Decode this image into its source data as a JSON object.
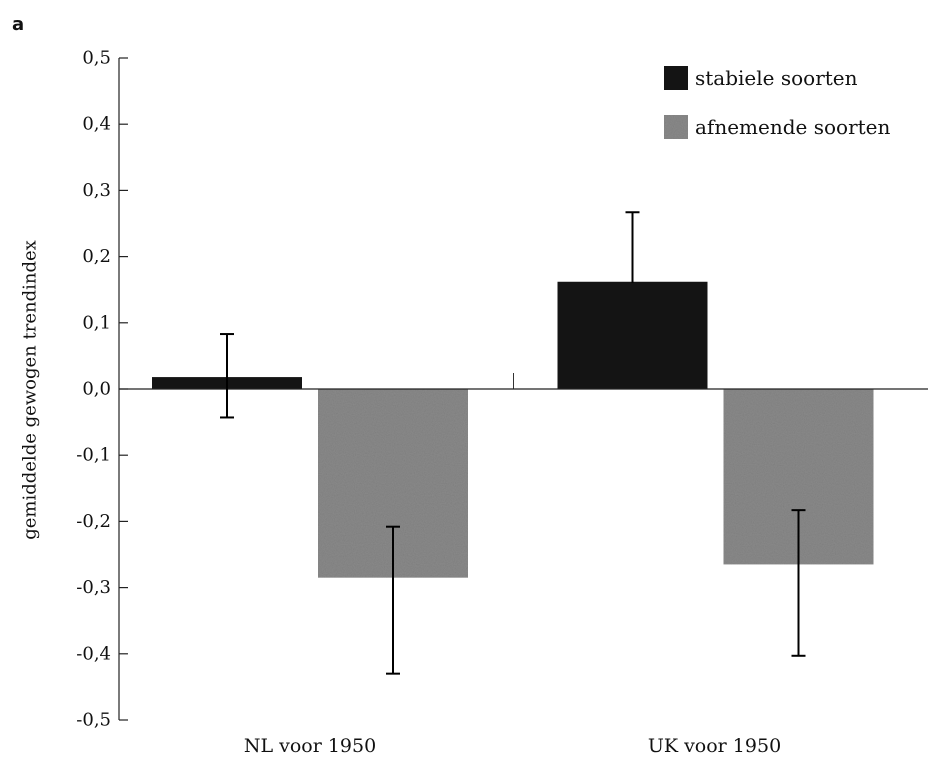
{
  "panel_label": "a",
  "chart_data": {
    "type": "bar",
    "title": "",
    "xlabel": "",
    "ylabel": "gemiddelde gewogen trendindex",
    "ylim": [
      -0.5,
      0.5
    ],
    "yticks": [
      0.5,
      0.4,
      0.3,
      0.2,
      0.1,
      0.0,
      -0.1,
      -0.2,
      -0.3,
      -0.4,
      -0.5
    ],
    "ytick_labels": [
      "0,5",
      "0,4",
      "0,3",
      "0,2",
      "0,1",
      "0,0",
      "-0,1",
      "-0,2",
      "-0,3",
      "-0,4",
      "-0,5"
    ],
    "categories": [
      "NL voor 1950",
      "UK voor 1950"
    ],
    "series": [
      {
        "name": "stabiele soorten",
        "color": "#141414",
        "values": [
          0.018,
          0.162
        ],
        "error_low": [
          -0.043,
          0.16
        ],
        "error_high": [
          0.083,
          0.267
        ],
        "error_cap": [
          "both",
          "top"
        ]
      },
      {
        "name": "afnemende soorten",
        "color": "#8a8a8a",
        "values": [
          -0.285,
          -0.265
        ],
        "error_low": [
          -0.43,
          -0.403
        ],
        "error_high": [
          -0.208,
          -0.183
        ],
        "error_cap": [
          "both",
          "both"
        ]
      }
    ],
    "legend_position": "top-right",
    "grid": false
  }
}
